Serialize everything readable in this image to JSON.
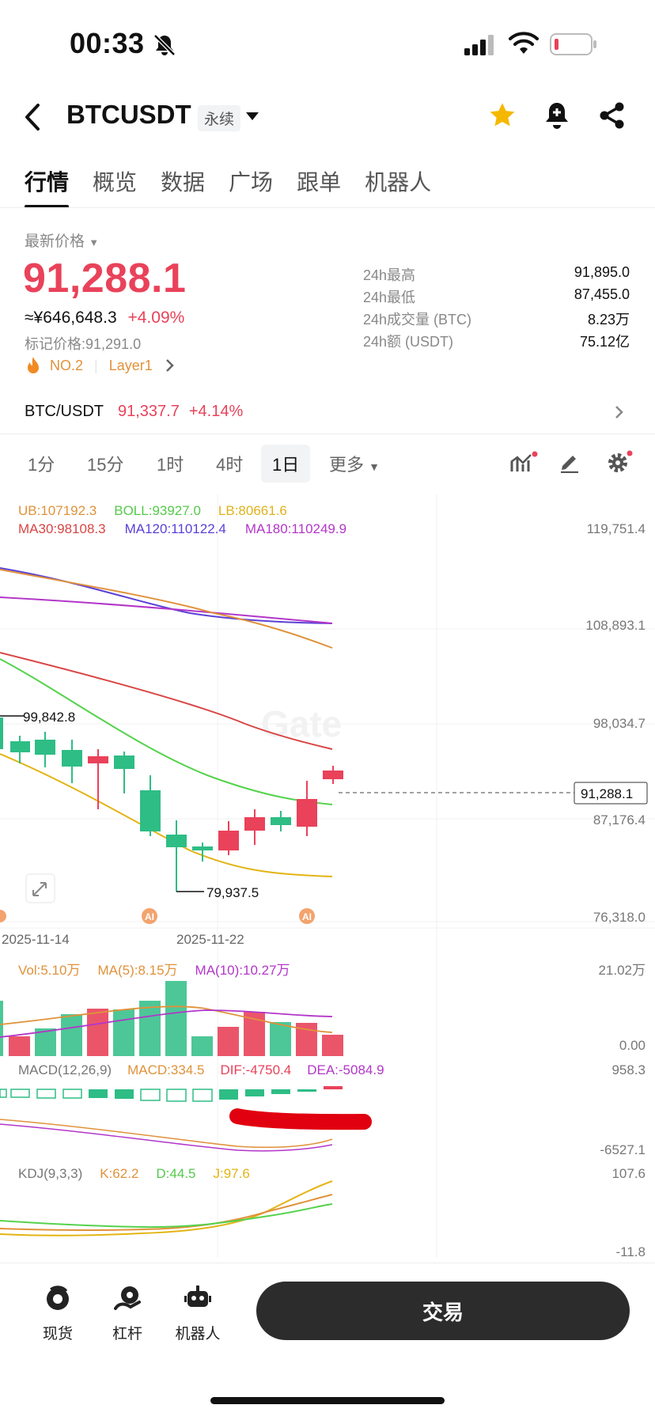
{
  "status": {
    "time": "00:33"
  },
  "header": {
    "title": "BTCUSDT",
    "tag": "永续"
  },
  "tabs": [
    "行情",
    "概览",
    "数据",
    "广场",
    "跟单",
    "机器人"
  ],
  "price": {
    "label": "最新价格",
    "value": "91,288.1",
    "cny": "≈¥646,648.3",
    "change": "+4.09%",
    "mark_label": "标记价格:",
    "mark_value": "91,291.0",
    "rank": "NO.2",
    "category": "Layer1"
  },
  "stats": [
    {
      "k": "24h最高",
      "v": "91,895.0"
    },
    {
      "k": "24h最低",
      "v": "87,455.0"
    },
    {
      "k": "24h成交量 (BTC)",
      "v": "8.23万"
    },
    {
      "k": "24h额 (USDT)",
      "v": "75.12亿"
    }
  ],
  "spot": {
    "pair": "BTC/USDT",
    "price": "91,337.7",
    "change": "+4.14%"
  },
  "timeframes": {
    "t1": "1分",
    "t2": "15分",
    "t3": "1时",
    "t4": "4时",
    "t5": "1日",
    "more": "更多"
  },
  "indicators": {
    "ub": "UB:107192.3",
    "boll": "BOLL:93927.0",
    "lb": "LB:80661.6",
    "ma30": "MA30:98108.3",
    "ma120": "MA120:110122.4",
    "ma180": "MA180:110249.9",
    "vol": "Vol:5.10万",
    "vma5": "MA(5):8.15万",
    "vma10": "MA(10):10.27万",
    "macd_t": "MACD(12,26,9)",
    "macd": "MACD:334.5",
    "dif": "DIF:-4750.4",
    "dea": "DEA:-5084.9",
    "kdj_t": "KDJ(9,3,3)",
    "k": "K:62.2",
    "d": "D:44.5",
    "j": "J:97.6"
  },
  "axis": {
    "a1": "119,751.4",
    "a2": "108,893.1",
    "a3": "98,034.7",
    "a4": "87,176.4",
    "a5": "76,318.0",
    "last": "91,288.1",
    "vol_top": "21.02万",
    "vol_bottom": "0.00",
    "macd_top": "958.3",
    "macd_bottom": "-6527.1",
    "kdj_top": "107.6",
    "kdj_bottom": "-11.8"
  },
  "annotations": {
    "high": "99,842.8",
    "low": "79,937.5",
    "ai": "AI",
    "d1": "2025-11-14",
    "d2": "2025-11-22",
    "watermark": "Gate"
  },
  "bottom_nav": {
    "spot": "现货",
    "margin": "杠杆",
    "bot": "机器人",
    "trade": "交易"
  },
  "colors": {
    "up": "#e9425a",
    "down": "#2ebd85"
  }
}
